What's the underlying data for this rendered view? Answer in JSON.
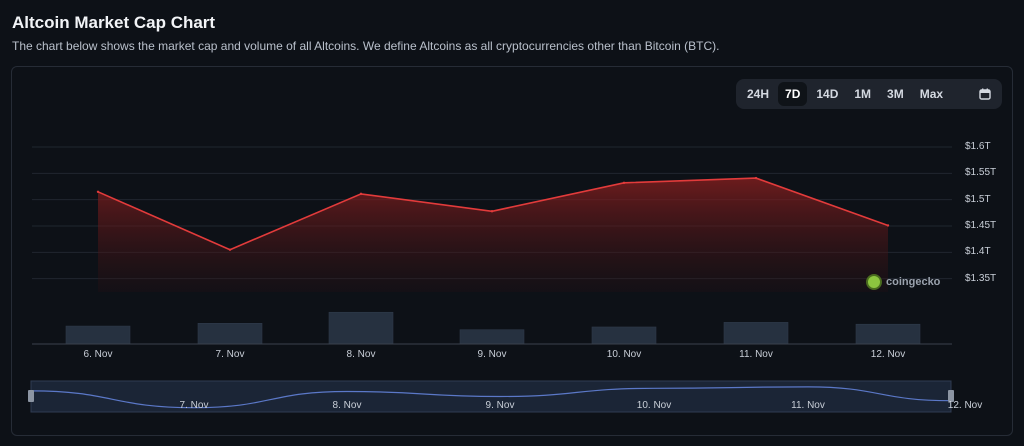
{
  "header": {
    "title": "Altcoin Market Cap Chart",
    "subtitle": "The chart below shows the market cap and volume of all Altcoins. We define Altcoins as all cryptocurrencies other than Bitcoin (BTC)."
  },
  "range_tabs": [
    "24H",
    "7D",
    "14D",
    "1M",
    "3M",
    "Max"
  ],
  "active_range": "7D",
  "icons": {
    "calendar": "calendar-icon",
    "watermark": "coingecko-logo"
  },
  "watermark": "coingecko",
  "colors": {
    "line": "#e23b3b",
    "volume": "#263140",
    "navigator_line": "#5b78c8"
  },
  "chart_data": {
    "type": "area",
    "title": "Altcoin Market Cap Chart",
    "categories": [
      "6. Nov",
      "7. Nov",
      "8. Nov",
      "9. Nov",
      "10. Nov",
      "11. Nov",
      "12. Nov"
    ],
    "series": [
      {
        "values": [
          1.515,
          1.405,
          1.511,
          1.478,
          1.532,
          1.541,
          1.451
        ]
      }
    ],
    "volume": [
      0.39,
      0.45,
      0.69,
      0.31,
      0.37,
      0.47,
      0.43
    ],
    "y_ticks": [
      "$1.6T",
      "$1.55T",
      "$1.5T",
      "$1.45T",
      "$1.4T",
      "$1.35T"
    ],
    "ylim": [
      1.3,
      1.6
    ],
    "navigator": {
      "ticks": [
        "7. Nov",
        "8. Nov",
        "9. Nov",
        "10. Nov",
        "11. Nov",
        "12. Nov"
      ]
    },
    "grid": true
  }
}
